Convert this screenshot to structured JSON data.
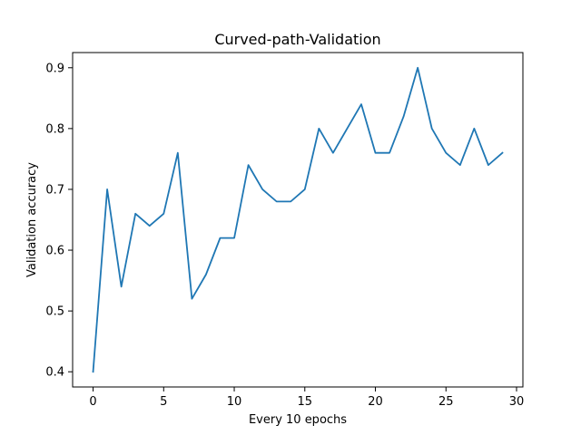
{
  "chart_data": {
    "type": "line",
    "title": "Curved-path-Validation",
    "xlabel": "Every 10 epochs",
    "ylabel": "Validation accuracy",
    "xlim": [
      -1.45,
      30.45
    ],
    "ylim": [
      0.375,
      0.925
    ],
    "x_ticks": [
      0,
      5,
      10,
      15,
      20,
      25,
      30
    ],
    "y_ticks": [
      0.4,
      0.5,
      0.6,
      0.7,
      0.8,
      0.9
    ],
    "y_tick_labels": [
      "0.4",
      "0.5",
      "0.6",
      "0.7",
      "0.8",
      "0.9"
    ],
    "grid": false,
    "series": [
      {
        "color": "#1f77b4",
        "x": [
          0,
          1,
          2,
          3,
          4,
          5,
          6,
          7,
          8,
          9,
          10,
          11,
          12,
          13,
          14,
          15,
          16,
          17,
          18,
          19,
          20,
          21,
          22,
          23,
          24,
          25,
          26,
          27,
          28,
          29
        ],
        "y": [
          0.4,
          0.7,
          0.54,
          0.66,
          0.64,
          0.66,
          0.76,
          0.52,
          0.56,
          0.62,
          0.62,
          0.74,
          0.7,
          0.68,
          0.68,
          0.7,
          0.8,
          0.76,
          0.8,
          0.84,
          0.76,
          0.76,
          0.82,
          0.9,
          0.8,
          0.76,
          0.74,
          0.8,
          0.74,
          0.76
        ]
      }
    ]
  }
}
